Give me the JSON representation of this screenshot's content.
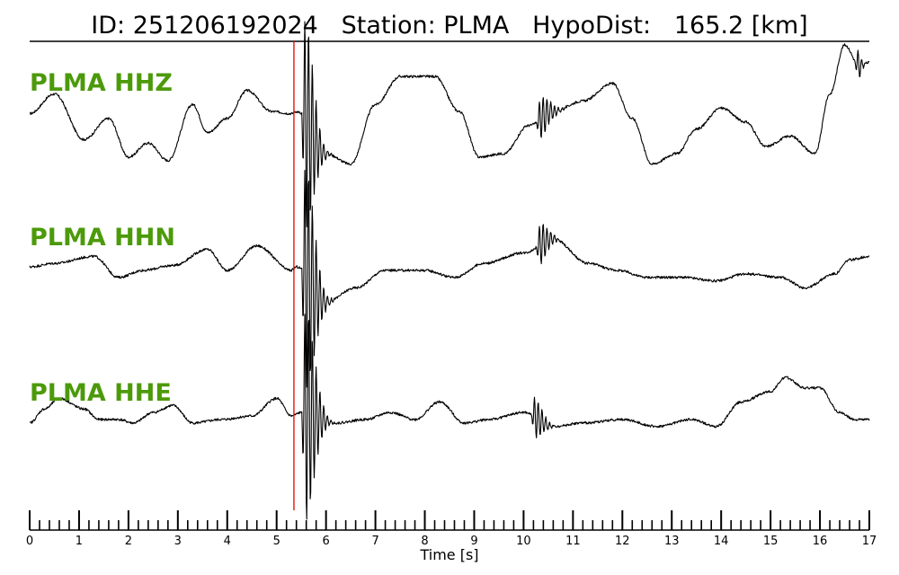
{
  "title": "ID: 251206192024   Station: PLMA   HypoDist:   165.2 [km]",
  "colors": {
    "label": "#4c9a0a",
    "pick": "#e8120f",
    "trace": "#000000"
  },
  "chart_data": {
    "type": "line",
    "xlabel": "Time [s]",
    "xlim": [
      0,
      17
    ],
    "major_ticks": [
      0,
      1,
      2,
      3,
      4,
      5,
      6,
      7,
      8,
      9,
      10,
      11,
      12,
      13,
      14,
      15,
      16,
      17
    ],
    "minor_tick_step": 0.2,
    "pick_time": 5.35,
    "traces": [
      {
        "label": "PLMA HHZ",
        "keypoints": [
          [
            0,
            0.02
          ],
          [
            0.5,
            0.3
          ],
          [
            1.1,
            -0.35
          ],
          [
            1.6,
            -0.05
          ],
          [
            2.0,
            -0.6
          ],
          [
            2.4,
            -0.4
          ],
          [
            2.8,
            -0.65
          ],
          [
            3.3,
            0.15
          ],
          [
            3.6,
            -0.25
          ],
          [
            4.0,
            -0.05
          ],
          [
            4.4,
            0.35
          ],
          [
            4.9,
            0.05
          ],
          [
            5.3,
            0.02
          ],
          [
            5.4,
            0.05
          ],
          [
            6.0,
            -0.55
          ],
          [
            6.5,
            -0.7
          ],
          [
            7.0,
            0.15
          ],
          [
            7.5,
            0.55
          ],
          [
            8.2,
            0.55
          ],
          [
            8.7,
            0.05
          ],
          [
            9.1,
            -0.6
          ],
          [
            9.6,
            -0.55
          ],
          [
            10.1,
            -0.15
          ],
          [
            10.6,
            0.05
          ],
          [
            11.2,
            0.2
          ],
          [
            11.8,
            0.45
          ],
          [
            12.2,
            -0.05
          ],
          [
            12.6,
            -0.7
          ],
          [
            13.1,
            -0.55
          ],
          [
            13.5,
            -0.2
          ],
          [
            14.0,
            0.1
          ],
          [
            14.5,
            -0.1
          ],
          [
            14.9,
            -0.45
          ],
          [
            15.4,
            -0.3
          ],
          [
            15.9,
            -0.55
          ],
          [
            16.2,
            0.3
          ],
          [
            16.5,
            1.0
          ],
          [
            16.8,
            0.7
          ],
          [
            17,
            0.75
          ]
        ],
        "bursts": [
          [
            5.55,
            0.32,
            1.6
          ],
          [
            10.3,
            0.35,
            0.3
          ],
          [
            16.75,
            0.12,
            0.25
          ]
        ]
      },
      {
        "label": "PLMA HHN",
        "keypoints": [
          [
            0,
            0.0
          ],
          [
            0.5,
            0.05
          ],
          [
            1.3,
            0.15
          ],
          [
            1.8,
            -0.15
          ],
          [
            2.3,
            -0.05
          ],
          [
            2.9,
            0.02
          ],
          [
            3.6,
            0.25
          ],
          [
            4.0,
            -0.05
          ],
          [
            4.6,
            0.3
          ],
          [
            5.3,
            -0.05
          ],
          [
            5.4,
            0.0
          ],
          [
            6.0,
            -0.5
          ],
          [
            6.6,
            -0.3
          ],
          [
            7.2,
            -0.05
          ],
          [
            8.0,
            -0.05
          ],
          [
            8.6,
            -0.15
          ],
          [
            9.2,
            0.05
          ],
          [
            10.0,
            0.2
          ],
          [
            10.6,
            0.4
          ],
          [
            11.3,
            0.05
          ],
          [
            11.9,
            -0.05
          ],
          [
            12.5,
            -0.15
          ],
          [
            13.2,
            -0.15
          ],
          [
            13.9,
            -0.2
          ],
          [
            14.5,
            -0.1
          ],
          [
            15.2,
            -0.15
          ],
          [
            15.7,
            -0.3
          ],
          [
            16.3,
            -0.1
          ],
          [
            16.6,
            0.1
          ],
          [
            17,
            0.15
          ]
        ],
        "bursts": [
          [
            5.55,
            0.35,
            1.7
          ],
          [
            10.3,
            0.3,
            0.3
          ]
        ]
      },
      {
        "label": "PLMA HHE",
        "keypoints": [
          [
            0,
            -0.1
          ],
          [
            0.3,
            0.1
          ],
          [
            0.6,
            0.25
          ],
          [
            1.1,
            0.1
          ],
          [
            1.4,
            -0.05
          ],
          [
            1.8,
            -0.05
          ],
          [
            2.1,
            -0.1
          ],
          [
            2.5,
            0.05
          ],
          [
            2.9,
            0.15
          ],
          [
            3.3,
            -0.1
          ],
          [
            3.9,
            -0.05
          ],
          [
            4.5,
            0.0
          ],
          [
            5.0,
            0.25
          ],
          [
            5.3,
            0.0
          ],
          [
            5.5,
            0.05
          ],
          [
            6.2,
            -0.1
          ],
          [
            6.8,
            -0.05
          ],
          [
            7.3,
            0.05
          ],
          [
            7.8,
            -0.05
          ],
          [
            8.3,
            0.2
          ],
          [
            8.8,
            -0.1
          ],
          [
            9.3,
            -0.05
          ],
          [
            10.0,
            0.05
          ],
          [
            10.6,
            -0.15
          ],
          [
            11.2,
            -0.1
          ],
          [
            12.0,
            -0.05
          ],
          [
            12.7,
            -0.15
          ],
          [
            13.4,
            -0.05
          ],
          [
            13.9,
            -0.15
          ],
          [
            14.4,
            0.2
          ],
          [
            15.0,
            0.35
          ],
          [
            15.3,
            0.55
          ],
          [
            15.7,
            0.4
          ],
          [
            16.0,
            0.4
          ],
          [
            16.4,
            0.05
          ],
          [
            16.7,
            -0.05
          ],
          [
            17,
            -0.05
          ]
        ],
        "bursts": [
          [
            5.55,
            0.35,
            1.6
          ],
          [
            10.2,
            0.3,
            0.3
          ]
        ]
      }
    ]
  }
}
